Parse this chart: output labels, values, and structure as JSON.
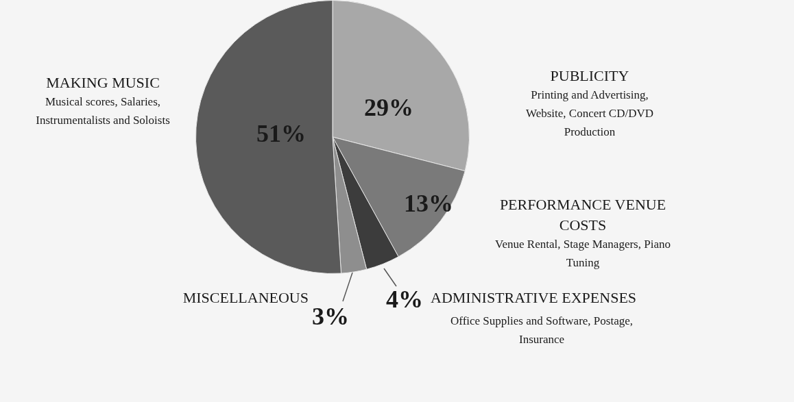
{
  "chart_data": {
    "type": "pie",
    "categories": [
      "PUBLICITY",
      "PERFORMANCE VENUE COSTS",
      "ADMINISTRATIVE EXPENSES",
      "MISCELLANEOUS",
      "MAKING MUSIC"
    ],
    "values": [
      29,
      13,
      4,
      3,
      51
    ],
    "value_labels": [
      "29%",
      "13%",
      "4%",
      "3%",
      "51%"
    ],
    "colors": [
      "#a8a8a8",
      "#7a7a7a",
      "#3c3c3c",
      "#8e8e8e",
      "#5a5a5a"
    ],
    "annotations": [
      "Printing and Advertising, Website, Concert CD/DVD Production",
      "Venue Rental, Stage Managers, Piano Tuning",
      "Office Supplies and Software, Postage, Insurance",
      null,
      "Musical scores, Salaries, Instrumentalists and Soloists"
    ],
    "legend": false
  }
}
